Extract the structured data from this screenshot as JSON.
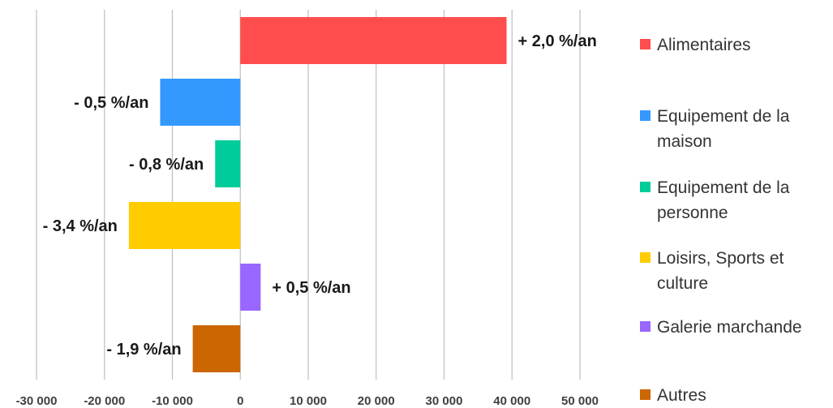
{
  "chart_data": {
    "type": "bar",
    "orientation": "horizontal",
    "categories": [
      "Alimentaires",
      "Equipement de la maison",
      "Equipement de la personne",
      "Loisirs, Sports et culture",
      "Galerie marchande",
      "Autres"
    ],
    "values": [
      39200,
      -11800,
      -3700,
      -16400,
      3000,
      -7000
    ],
    "data_labels": [
      "+ 2,0 %/an",
      "- 0,5 %/an",
      "- 0,8 %/an",
      "- 3,4 %/an",
      "+ 0,5 %/an",
      "- 1,9 %/an"
    ],
    "colors": [
      "#ff4d4d",
      "#3399ff",
      "#00cc99",
      "#ffcc00",
      "#9966ff",
      "#cc6600"
    ],
    "xlim": [
      -30000,
      50000
    ],
    "x_ticks": [
      -30000,
      -20000,
      -10000,
      0,
      10000,
      20000,
      30000,
      40000,
      50000
    ],
    "x_tick_labels": [
      "-30 000",
      "-20 000",
      "-10 000",
      "0",
      "10 000",
      "20 000",
      "30 000",
      "40 000",
      "50 000"
    ],
    "grid": "vertical",
    "legend": {
      "position": "right",
      "entries": [
        [
          "Alimentaires"
        ],
        [
          "Equipement de la",
          "maison"
        ],
        [
          "Equipement de la",
          "personne"
        ],
        [
          "Loisirs, Sports et",
          "culture"
        ],
        [
          "Galerie marchande"
        ],
        [
          "Autres"
        ]
      ]
    }
  }
}
